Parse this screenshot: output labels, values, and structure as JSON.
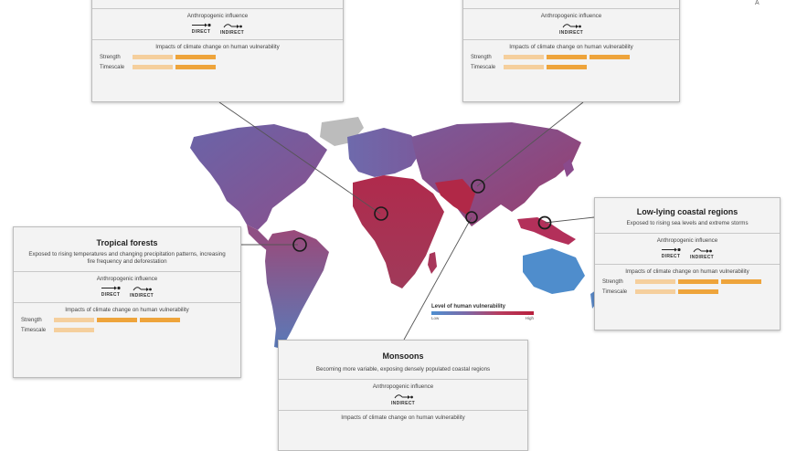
{
  "figure": {
    "corner_mark": "A",
    "legend": {
      "title": "Level of human vulnerability",
      "low": "Low",
      "high": "High"
    }
  },
  "common": {
    "influence_title": "Anthropogenic influence",
    "direct_label": "DIRECT",
    "indirect_label": "INDIRECT",
    "impacts_title": "Impacts of climate change on human vulnerability",
    "strength_label": "Strength",
    "timescale_label": "Timescale"
  },
  "panels": {
    "top_left": {
      "description": "",
      "influences": [
        "direct",
        "indirect"
      ],
      "strength": 2,
      "timescale": 2
    },
    "top_right": {
      "description": "",
      "influences": [
        "indirect"
      ],
      "strength": 3,
      "timescale": 2
    },
    "tropical": {
      "title": "Tropical forests",
      "description": "Exposed to rising temperatures and changing precipitation patterns, increasing fire frequency and deforestation",
      "influences": [
        "direct",
        "indirect"
      ],
      "strength": 3,
      "timescale": 1
    },
    "coastal": {
      "title": "Low-lying coastal regions",
      "description": "Exposed to rising sea levels and extreme storms",
      "influences": [
        "direct",
        "indirect"
      ],
      "strength": 3,
      "timescale": 2
    },
    "monsoons": {
      "title": "Monsoons",
      "description": "Becoming more variable, exposing densely populated coastal regions",
      "influences": [
        "indirect"
      ]
    }
  },
  "colors": {
    "low_vulnerability": "#4e8fd0",
    "high_vulnerability": "#b81f3c",
    "strength_light": "#f5cf9d",
    "strength_dark": "#eea43b"
  }
}
